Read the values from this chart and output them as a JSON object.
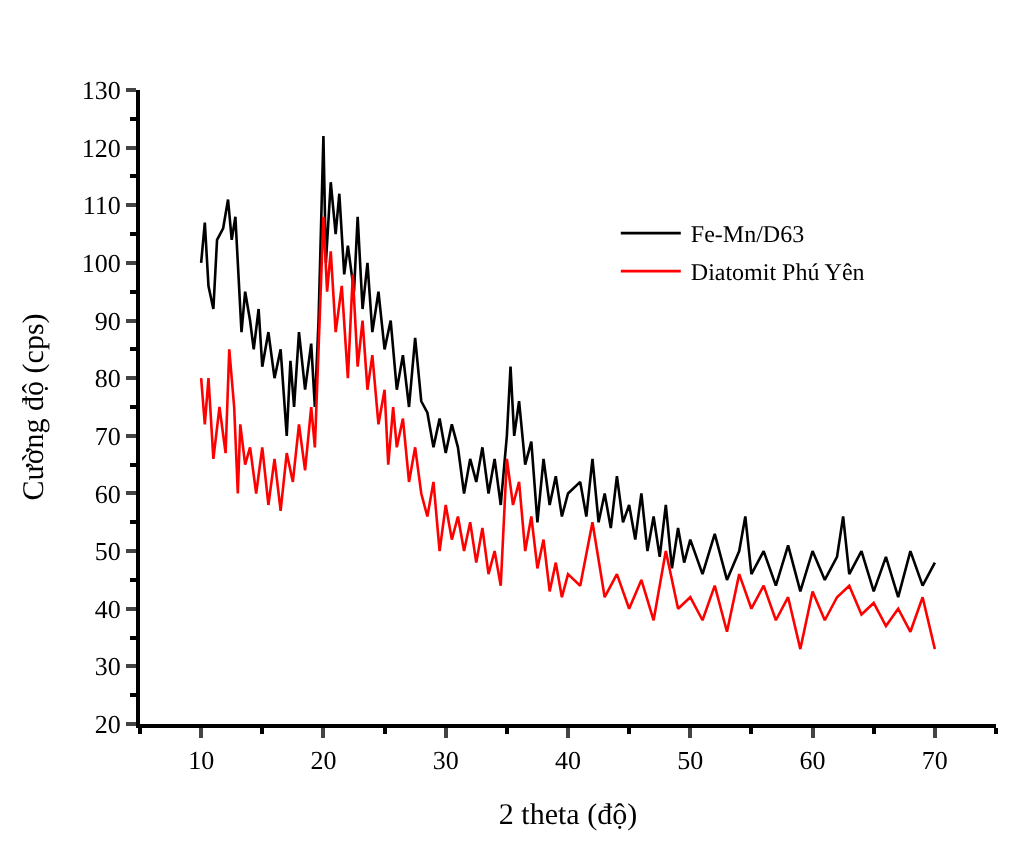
{
  "chart_data": {
    "type": "line",
    "xlabel": "2 theta (độ)",
    "ylabel": "Cường độ (cps)",
    "xlim": [
      5,
      75
    ],
    "xticks": [
      10,
      20,
      30,
      40,
      50,
      60,
      70
    ],
    "ylim": [
      20,
      130
    ],
    "yticks": [
      20,
      30,
      40,
      50,
      60,
      70,
      80,
      90,
      100,
      110,
      120,
      130
    ],
    "legend": "top right",
    "marker": "none",
    "line_style": "solid",
    "series": [
      {
        "name": "Fe-Mn/D63",
        "color": "#000000",
        "x": [
          10,
          10.3,
          10.6,
          11,
          11.3,
          11.8,
          12.2,
          12.5,
          12.8,
          13,
          13.3,
          13.6,
          14,
          14.3,
          14.7,
          15,
          15.5,
          16,
          16.5,
          17,
          17.3,
          17.6,
          18,
          18.5,
          19,
          19.3,
          19.6,
          20,
          20.2,
          20.6,
          21,
          21.3,
          21.7,
          22,
          22.5,
          22.8,
          23.2,
          23.6,
          24,
          24.5,
          25,
          25.5,
          26,
          26.5,
          27,
          27.5,
          28,
          28.5,
          29,
          29.5,
          30,
          30.5,
          31,
          31.5,
          32,
          32.5,
          33,
          33.5,
          34,
          34.5,
          35,
          35.3,
          35.6,
          36,
          36.5,
          37,
          37.5,
          38,
          38.5,
          39,
          39.5,
          40,
          41,
          41.5,
          42,
          42.5,
          43,
          43.5,
          44,
          44.5,
          45,
          45.5,
          46,
          46.5,
          47,
          47.5,
          48,
          48.5,
          49,
          49.5,
          50,
          51,
          52,
          53,
          54,
          54.5,
          55,
          56,
          57,
          58,
          59,
          60,
          61,
          62,
          62.5,
          63,
          64,
          65,
          66,
          67,
          68,
          69,
          70
        ],
        "values": [
          100,
          107,
          96,
          92,
          104,
          106,
          111,
          104,
          108,
          100,
          88,
          95,
          90,
          85,
          92,
          82,
          88,
          80,
          85,
          70,
          83,
          75,
          88,
          78,
          86,
          75,
          90,
          122,
          100,
          114,
          105,
          112,
          98,
          103,
          95,
          108,
          92,
          100,
          88,
          95,
          85,
          90,
          78,
          84,
          75,
          87,
          76,
          74,
          68,
          73,
          67,
          72,
          68,
          60,
          66,
          62,
          68,
          60,
          66,
          58,
          70,
          82,
          70,
          76,
          65,
          69,
          55,
          66,
          58,
          63,
          56,
          60,
          62,
          56,
          66,
          55,
          60,
          54,
          63,
          55,
          58,
          52,
          60,
          50,
          56,
          49,
          58,
          47,
          54,
          48,
          52,
          46,
          53,
          45,
          50,
          56,
          46,
          50,
          44,
          51,
          43,
          50,
          45,
          49,
          56,
          46,
          50,
          43,
          49,
          42,
          50,
          44,
          48
        ]
      },
      {
        "name": "Diatomit Phú Yên",
        "color": "#ff0000",
        "x": [
          10,
          10.3,
          10.6,
          11,
          11.5,
          12,
          12.3,
          12.7,
          13,
          13.2,
          13.6,
          14,
          14.5,
          15,
          15.5,
          16,
          16.5,
          17,
          17.5,
          18,
          18.5,
          19,
          19.3,
          19.6,
          20,
          20.3,
          20.6,
          21,
          21.5,
          22,
          22.4,
          22.8,
          23.2,
          23.6,
          24,
          24.5,
          25,
          25.3,
          25.7,
          26,
          26.5,
          27,
          27.5,
          28,
          28.5,
          29,
          29.5,
          30,
          30.5,
          31,
          31.5,
          32,
          32.5,
          33,
          33.5,
          34,
          34.5,
          35,
          35.5,
          36,
          36.5,
          37,
          37.5,
          38,
          38.5,
          39,
          39.5,
          40,
          41,
          42,
          43,
          44,
          45,
          46,
          47,
          48,
          49,
          50,
          51,
          52,
          53,
          54,
          55,
          56,
          57,
          58,
          59,
          60,
          61,
          62,
          63,
          64,
          65,
          66,
          67,
          68,
          69,
          70
        ],
        "values": [
          80,
          72,
          80,
          66,
          75,
          67,
          85,
          75,
          60,
          72,
          65,
          68,
          60,
          68,
          58,
          66,
          57,
          67,
          62,
          72,
          64,
          75,
          68,
          85,
          108,
          95,
          102,
          88,
          96,
          80,
          98,
          82,
          90,
          78,
          84,
          72,
          78,
          65,
          75,
          68,
          73,
          62,
          68,
          60,
          56,
          62,
          50,
          58,
          52,
          56,
          50,
          55,
          48,
          54,
          46,
          50,
          44,
          66,
          58,
          62,
          50,
          56,
          47,
          52,
          43,
          48,
          42,
          46,
          44,
          55,
          42,
          46,
          40,
          45,
          38,
          50,
          40,
          42,
          38,
          44,
          36,
          46,
          40,
          44,
          38,
          42,
          33,
          43,
          38,
          42,
          44,
          39,
          41,
          37,
          40,
          36,
          42,
          33
        ]
      }
    ]
  }
}
